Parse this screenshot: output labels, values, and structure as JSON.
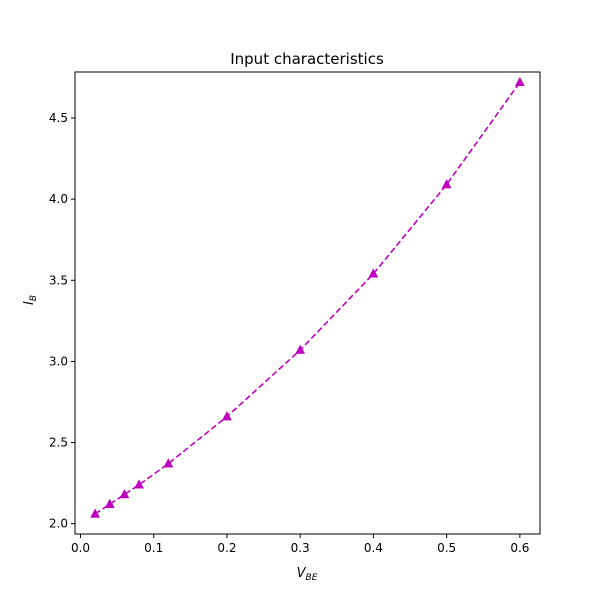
{
  "chart_data": {
    "type": "line",
    "title": "Input characteristics",
    "xlabel": {
      "main": "V",
      "sub": "BE"
    },
    "ylabel": {
      "main": "I",
      "sub": "B"
    },
    "xlim": [
      -0.0075,
      0.6275
    ],
    "ylim": [
      1.9365,
      4.7835
    ],
    "x_ticks": [
      0.0,
      0.1,
      0.2,
      0.3,
      0.4,
      0.5,
      0.6
    ],
    "x_tick_labels": [
      "0.0",
      "0.1",
      "0.2",
      "0.3",
      "0.4",
      "0.5",
      "0.6"
    ],
    "y_ticks": [
      2.0,
      2.5,
      3.0,
      3.5,
      4.0,
      4.5
    ],
    "y_tick_labels": [
      "2.0",
      "2.5",
      "3.0",
      "3.5",
      "4.0",
      "4.5"
    ],
    "grid": false,
    "series": [
      {
        "color": "#bf00bf",
        "line_style": "dashed",
        "marker": "triangle-up",
        "x": [
          0.02,
          0.04,
          0.06,
          0.08,
          0.12,
          0.2,
          0.3,
          0.4,
          0.5,
          0.6
        ],
        "y": [
          2.06,
          2.12,
          2.18,
          2.24,
          2.37,
          2.66,
          3.07,
          3.54,
          4.09,
          4.72
        ]
      }
    ]
  }
}
